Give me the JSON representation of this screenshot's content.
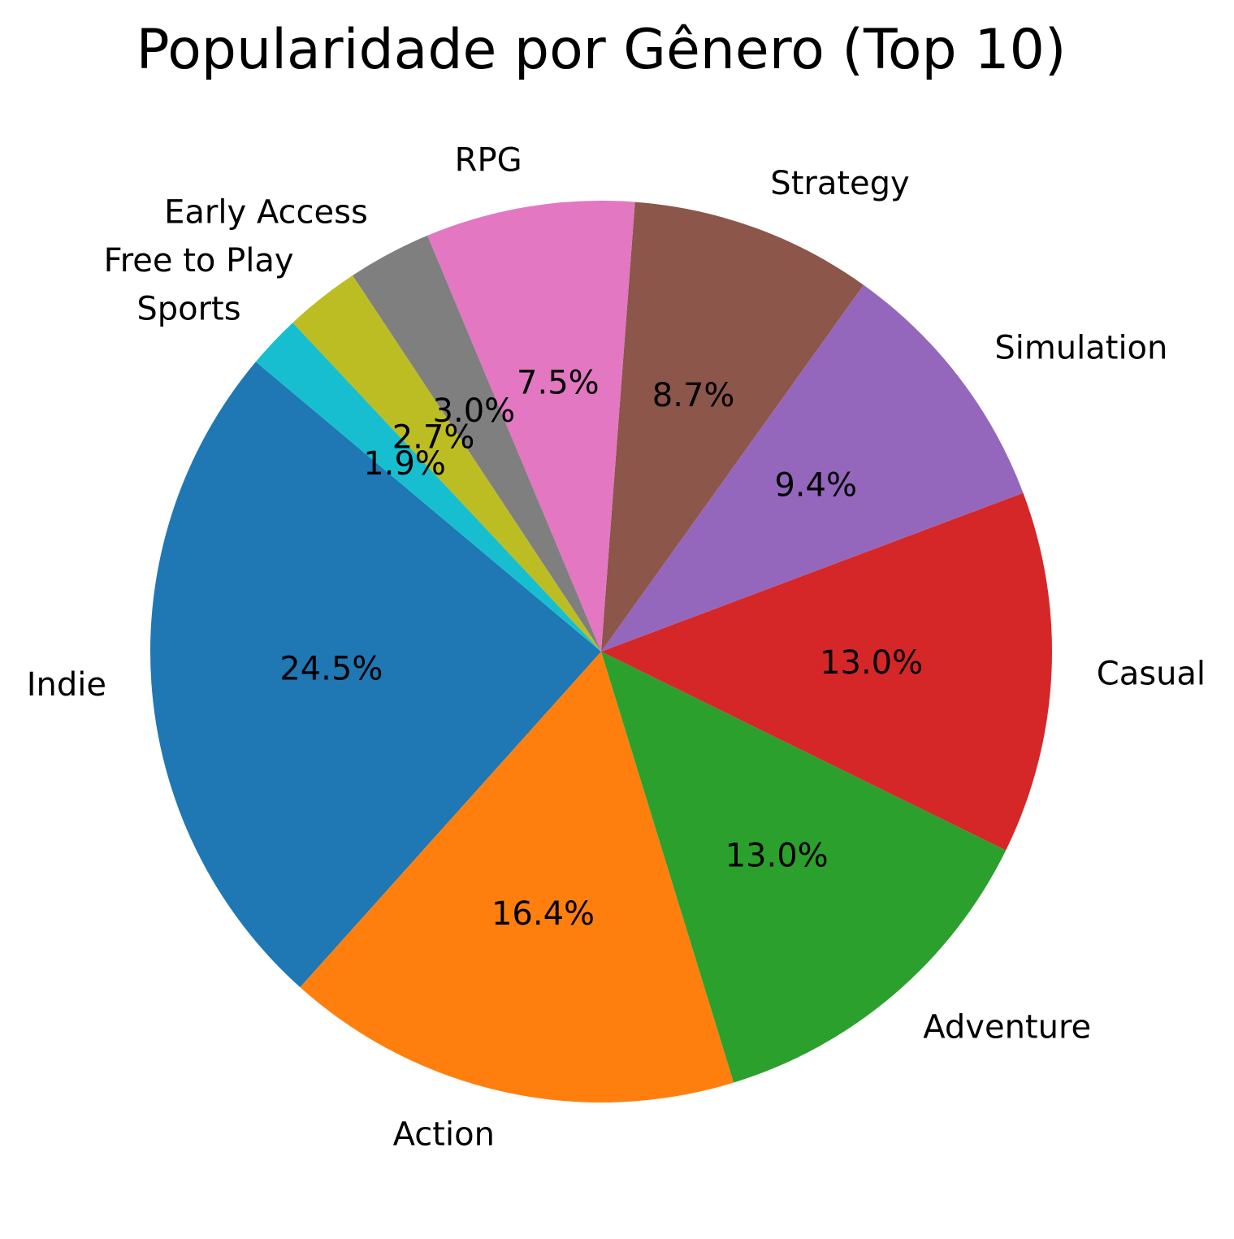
{
  "chart_data": {
    "type": "pie",
    "title": "Popularidade por Gênero (Top 10)",
    "start_angle_deg": 140,
    "direction": "counterclockwise",
    "slices": [
      {
        "label": "Indie",
        "value": 24.5,
        "pct_label": "24.5%",
        "color": "#1f77b4"
      },
      {
        "label": "Action",
        "value": 16.4,
        "pct_label": "16.4%",
        "color": "#ff7f0e"
      },
      {
        "label": "Adventure",
        "value": 13.0,
        "pct_label": "13.0%",
        "color": "#2ca02c"
      },
      {
        "label": "Casual",
        "value": 13.0,
        "pct_label": "13.0%",
        "color": "#d62728"
      },
      {
        "label": "Simulation",
        "value": 9.4,
        "pct_label": "9.4%",
        "color": "#9467bd"
      },
      {
        "label": "Strategy",
        "value": 8.7,
        "pct_label": "8.7%",
        "color": "#8c564b"
      },
      {
        "label": "RPG",
        "value": 7.5,
        "pct_label": "7.5%",
        "color": "#e377c2"
      },
      {
        "label": "Early Access",
        "value": 3.0,
        "pct_label": "3.0%",
        "color": "#7f7f7f"
      },
      {
        "label": "Free to Play",
        "value": 2.7,
        "pct_label": "2.7%",
        "color": "#bcbd22"
      },
      {
        "label": "Sports",
        "value": 1.9,
        "pct_label": "1.9%",
        "color": "#17becf"
      }
    ]
  }
}
